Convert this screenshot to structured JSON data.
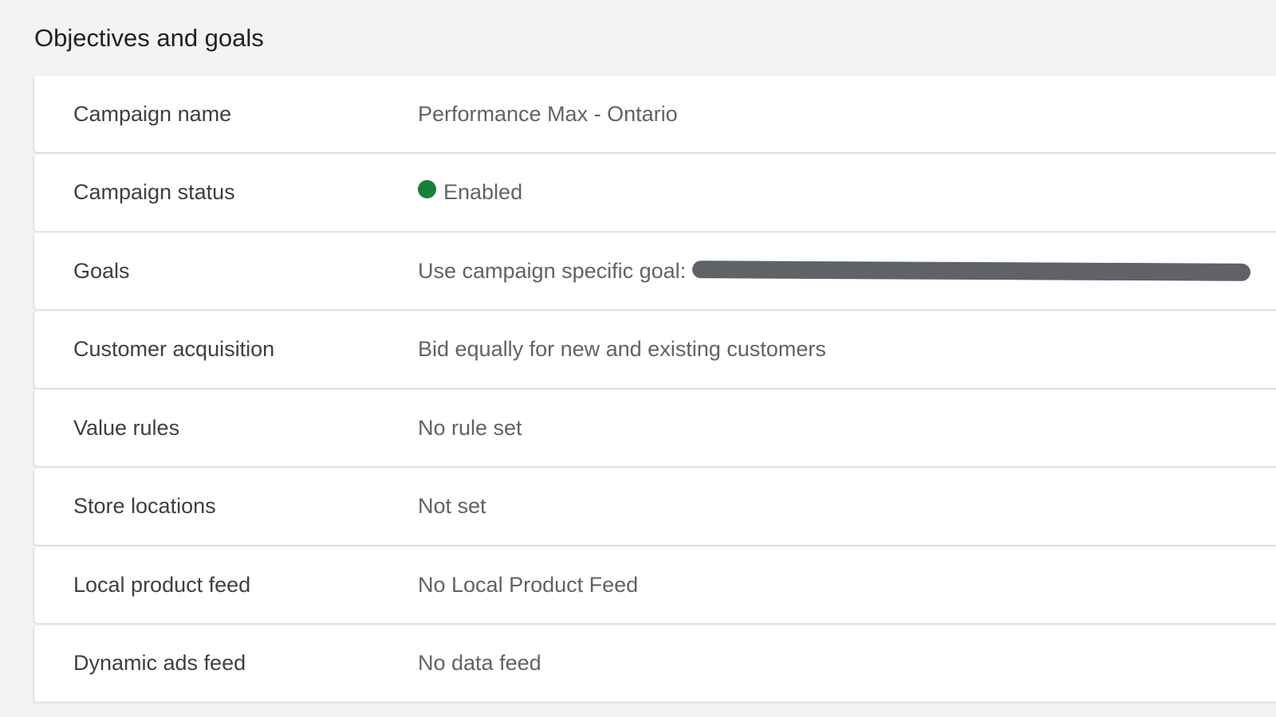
{
  "section_title": "Objectives and goals",
  "status_color": "#188038",
  "rows": [
    {
      "label": "Campaign name",
      "value": "Performance Max - Ontario"
    },
    {
      "label": "Campaign status",
      "value": "Enabled"
    },
    {
      "label": "Goals",
      "value": "Use campaign specific goal:"
    },
    {
      "label": "Customer acquisition",
      "value": "Bid equally for new and existing customers"
    },
    {
      "label": "Value rules",
      "value": "No rule set"
    },
    {
      "label": "Store locations",
      "value": "Not set"
    },
    {
      "label": "Local product feed",
      "value": "No Local Product Feed"
    },
    {
      "label": "Dynamic ads feed",
      "value": "No data feed"
    }
  ]
}
